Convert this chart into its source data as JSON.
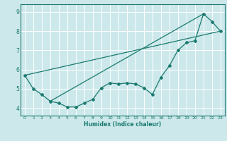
{
  "xlabel": "Humidex (Indice chaleur)",
  "ylabel": "",
  "bg_color": "#cce8eb",
  "line_color": "#1a7a6e",
  "grid_color": "#ffffff",
  "xlim": [
    -0.5,
    23.5
  ],
  "ylim": [
    3.6,
    9.4
  ],
  "xticks": [
    0,
    1,
    2,
    3,
    4,
    5,
    6,
    7,
    8,
    9,
    10,
    11,
    12,
    13,
    14,
    15,
    16,
    17,
    18,
    19,
    20,
    21,
    22,
    23
  ],
  "yticks": [
    4,
    5,
    6,
    7,
    8,
    9
  ],
  "curve_x": [
    0,
    1,
    2,
    3,
    4,
    5,
    6,
    7,
    8,
    9,
    10,
    11,
    12,
    13,
    14,
    15,
    16,
    17,
    18,
    19,
    20,
    21,
    22,
    23
  ],
  "curve_y": [
    5.7,
    5.0,
    4.7,
    4.35,
    4.25,
    4.05,
    4.05,
    4.25,
    4.45,
    5.05,
    5.3,
    5.25,
    5.3,
    5.25,
    5.05,
    4.7,
    5.6,
    6.2,
    7.0,
    7.4,
    7.5,
    8.9,
    8.5,
    8.0
  ],
  "line1_x": [
    0,
    23
  ],
  "line1_y": [
    5.7,
    8.0
  ],
  "line2_x": [
    3,
    21
  ],
  "line2_y": [
    4.35,
    8.9
  ]
}
